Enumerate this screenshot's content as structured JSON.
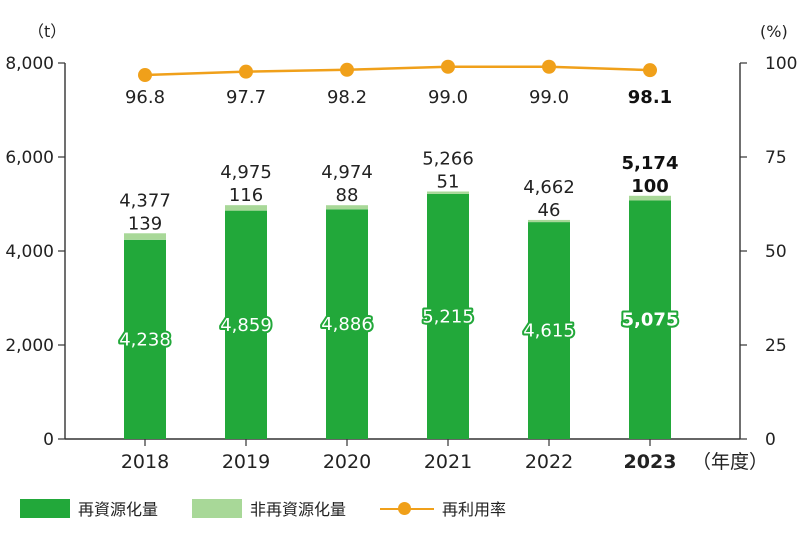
{
  "chart_data": {
    "type": "bar",
    "stacked": true,
    "categories": [
      "2018",
      "2019",
      "2020",
      "2021",
      "2022",
      "2023"
    ],
    "highlight_category": "2023",
    "xlabel": "（年度）",
    "y_left": {
      "unit": "（t）",
      "ylim": [
        0,
        8000
      ],
      "ticks": [
        "0",
        "2,000",
        "4,000",
        "6,000",
        "8,000"
      ],
      "tick_values": [
        0,
        2000,
        4000,
        6000,
        8000
      ]
    },
    "y_right": {
      "unit": "(%)",
      "ylim": [
        0,
        100
      ],
      "ticks": [
        "0",
        "25",
        "50",
        "75",
        "100"
      ],
      "tick_values": [
        0,
        25,
        50,
        75,
        100
      ]
    },
    "series": [
      {
        "name": "再資源化量",
        "type": "bar",
        "color": "#22a83a",
        "values": [
          4238,
          4859,
          4886,
          5215,
          4615,
          5075
        ],
        "labels": [
          "4,238",
          "4,859",
          "4,886",
          "5,215",
          "4,615",
          "5,075"
        ]
      },
      {
        "name": "非再資源化量",
        "type": "bar",
        "color": "#a8d898",
        "values": [
          139,
          116,
          88,
          51,
          46,
          100
        ],
        "labels": [
          "139",
          "116",
          "88",
          "51",
          "46",
          "100"
        ]
      },
      {
        "name": "再利用率",
        "type": "line",
        "axis": "right",
        "color": "#f0a01a",
        "values": [
          96.8,
          97.7,
          98.2,
          99.0,
          99.0,
          98.1
        ],
        "labels": [
          "96.8",
          "97.7",
          "98.2",
          "99.0",
          "99.0",
          "98.1"
        ]
      }
    ],
    "totals": {
      "values": [
        4377,
        4975,
        4974,
        5266,
        4662,
        5174
      ],
      "labels": [
        "4,377",
        "4,975",
        "4,974",
        "5,266",
        "4,662",
        "5,174"
      ]
    },
    "legend_position": "bottom-left",
    "grid": false
  }
}
